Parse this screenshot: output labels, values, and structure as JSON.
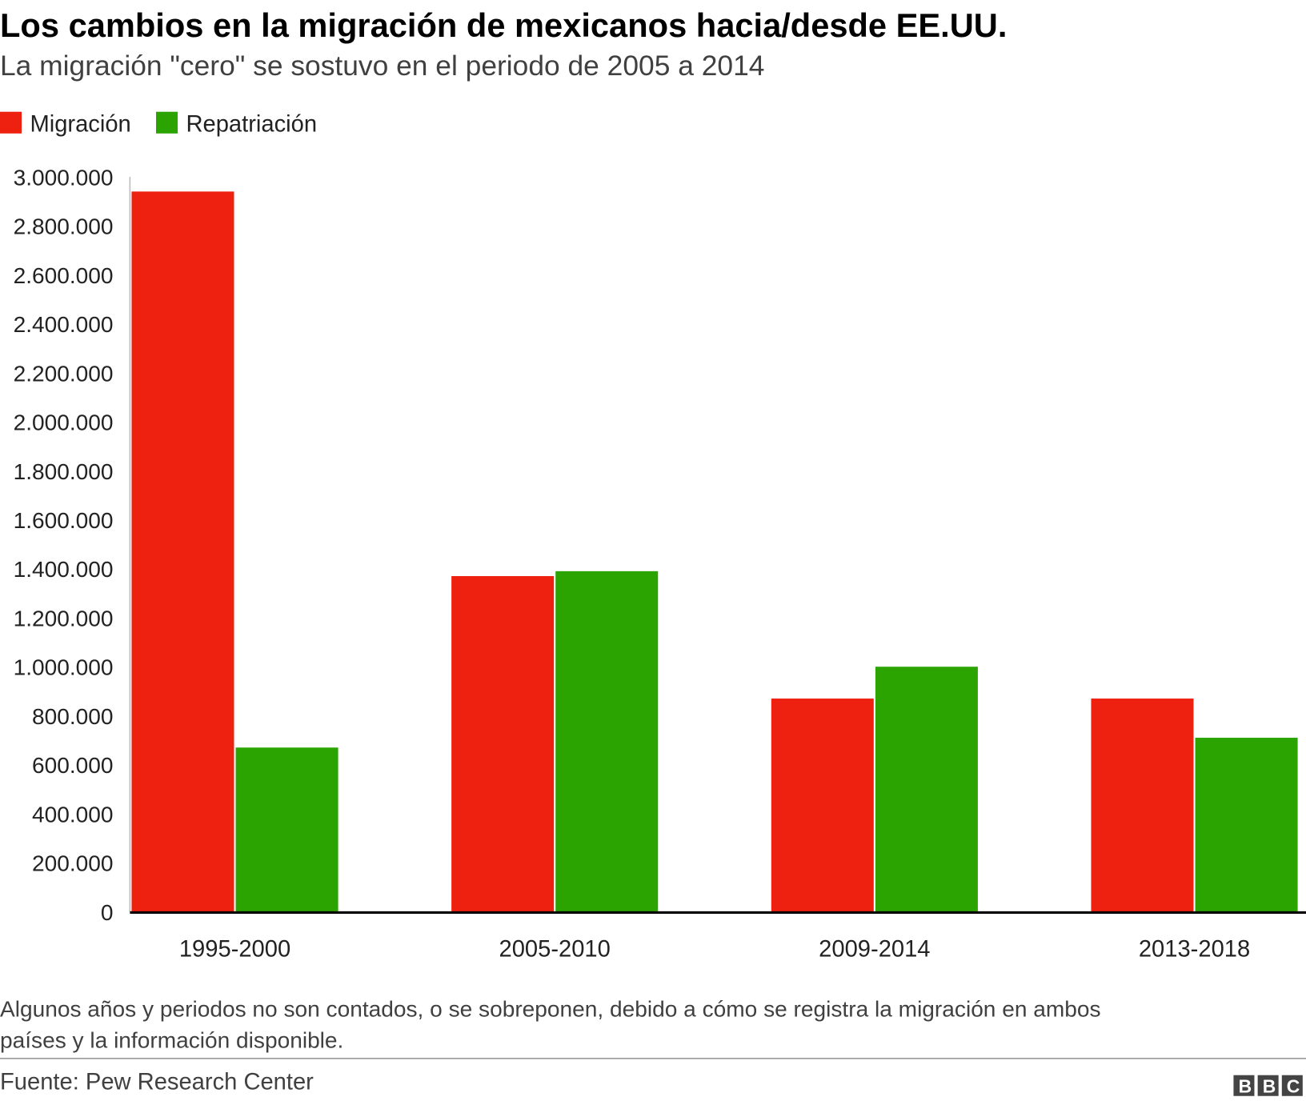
{
  "chart_data": {
    "type": "bar",
    "title": "Los cambios en la migración de mexicanos hacia/desde EE.UU.",
    "subtitle": "La migración \"cero\" se sostuvo en el periodo de 2005 a 2014",
    "categories": [
      "1995-2000",
      "2005-2010",
      "2009-2014",
      "2013-2018"
    ],
    "series": [
      {
        "name": "Migración",
        "color": "#ee2010",
        "values": [
          2940000,
          1370000,
          870000,
          870000
        ]
      },
      {
        "name": "Repatriación",
        "color": "#2ba300",
        "values": [
          670000,
          1390000,
          1000000,
          710000
        ]
      }
    ],
    "ylim": [
      0,
      3000000
    ],
    "yticks": [
      0,
      {
        "value": 200000,
        "label": "200.000"
      },
      {
        "value": 400000,
        "label": "400.000"
      },
      {
        "value": 600000,
        "label": "600.000"
      },
      {
        "value": 800000,
        "label": "800.000"
      },
      {
        "value": 1000000,
        "label": "1.000.000"
      },
      {
        "value": 1200000,
        "label": "1.200.000"
      },
      {
        "value": 1400000,
        "label": "1.400.000"
      },
      {
        "value": 1600000,
        "label": "1.600.000"
      },
      {
        "value": 1800000,
        "label": "1.800.000"
      },
      {
        "value": 2000000,
        "label": "2.000.000"
      },
      {
        "value": 2200000,
        "label": "2.200.000"
      },
      {
        "value": 2400000,
        "label": "2.400.000"
      },
      {
        "value": 2600000,
        "label": "2.600.000"
      },
      {
        "value": 2800000,
        "label": "2.800.000"
      },
      {
        "value": 3000000,
        "label": "3.000.000"
      }
    ],
    "grid": false,
    "legend": "top-left",
    "note": [
      "Algunos años y periodos no son contados, o se sobreponen, debido a cómo se registra la migración en ambos",
      "países y la información disponible."
    ],
    "source": "Fuente: Pew Research Center",
    "logo": "BBC"
  }
}
